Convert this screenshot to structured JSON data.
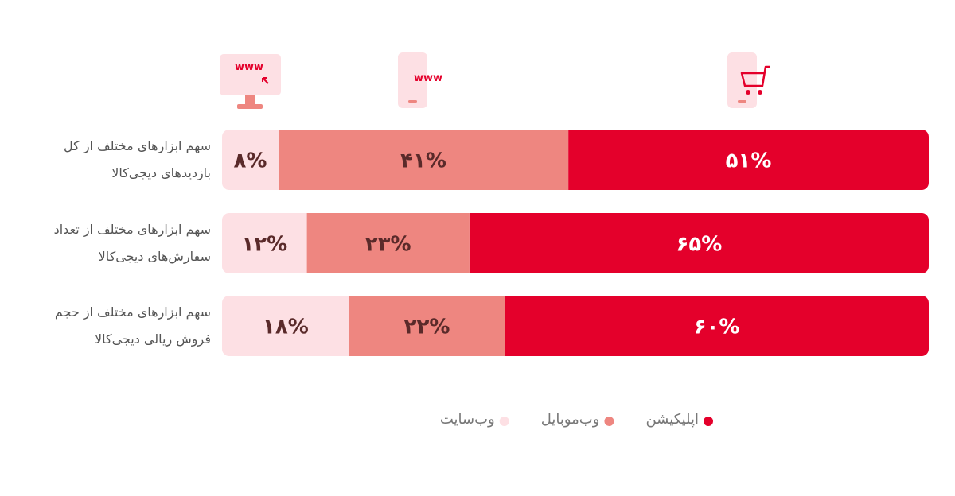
{
  "icons": {
    "desktop": "www",
    "mobile": "www"
  },
  "chart_data": {
    "type": "stacked-bar",
    "orientation": "horizontal",
    "categories": [
      "سهم ابزارهای مختلف از کل\nبازدیدهای دیجی‌کالا",
      "سهم ابزارهای مختلف از تعداد\nسفارش‌های دیجی‌کالا",
      "سهم ابزارهای مختلف از حجم\nفروش ریالی دیجی‌کالا"
    ],
    "xlim": [
      0,
      100
    ],
    "series": [
      {
        "name": "اپلیکیشن",
        "color": "#e4002b",
        "values": [
          51,
          65,
          60
        ],
        "value_labels": [
          "۵۱%",
          "۶۵%",
          "۶۰%"
        ]
      },
      {
        "name": "وب‌موبایل",
        "color": "#ee8680",
        "values": [
          41,
          23,
          22
        ],
        "value_labels": [
          "۴۱%",
          "۲۳%",
          "۲۲%"
        ]
      },
      {
        "name": "وب‌سایت",
        "color": "#fde0e4",
        "values": [
          8,
          12,
          18
        ],
        "value_labels": [
          "۸%",
          "۱۲%",
          "۱۸%"
        ]
      }
    ]
  }
}
